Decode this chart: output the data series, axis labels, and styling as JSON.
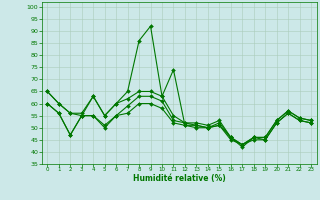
{
  "xlabel": "Humidité relative (%)",
  "xlim": [
    -0.5,
    23.5
  ],
  "ylim": [
    35,
    102
  ],
  "yticks": [
    35,
    40,
    45,
    50,
    55,
    60,
    65,
    70,
    75,
    80,
    85,
    90,
    95,
    100
  ],
  "xticks": [
    0,
    1,
    2,
    3,
    4,
    5,
    6,
    7,
    8,
    9,
    10,
    11,
    12,
    13,
    14,
    15,
    16,
    17,
    18,
    19,
    20,
    21,
    22,
    23
  ],
  "background_color": "#cce8e8",
  "grid_color": "#aaccbb",
  "line_color": "#007700",
  "linewidth": 0.8,
  "marker": "D",
  "marker_size": 2.0,
  "series": [
    [
      65,
      60,
      56,
      56,
      63,
      55,
      60,
      65,
      86,
      92,
      63,
      74,
      51,
      51,
      50,
      51,
      46,
      42,
      46,
      46,
      53,
      57,
      54,
      53
    ],
    [
      65,
      60,
      56,
      55,
      63,
      55,
      60,
      62,
      65,
      65,
      63,
      55,
      52,
      52,
      51,
      53,
      46,
      43,
      46,
      46,
      53,
      57,
      54,
      53
    ],
    [
      60,
      56,
      47,
      55,
      55,
      51,
      55,
      59,
      63,
      63,
      61,
      53,
      52,
      51,
      50,
      52,
      46,
      43,
      46,
      45,
      52,
      56,
      53,
      52
    ],
    [
      60,
      56,
      47,
      55,
      55,
      50,
      55,
      56,
      60,
      60,
      58,
      52,
      51,
      50,
      50,
      51,
      45,
      43,
      45,
      45,
      52,
      56,
      53,
      52
    ]
  ]
}
